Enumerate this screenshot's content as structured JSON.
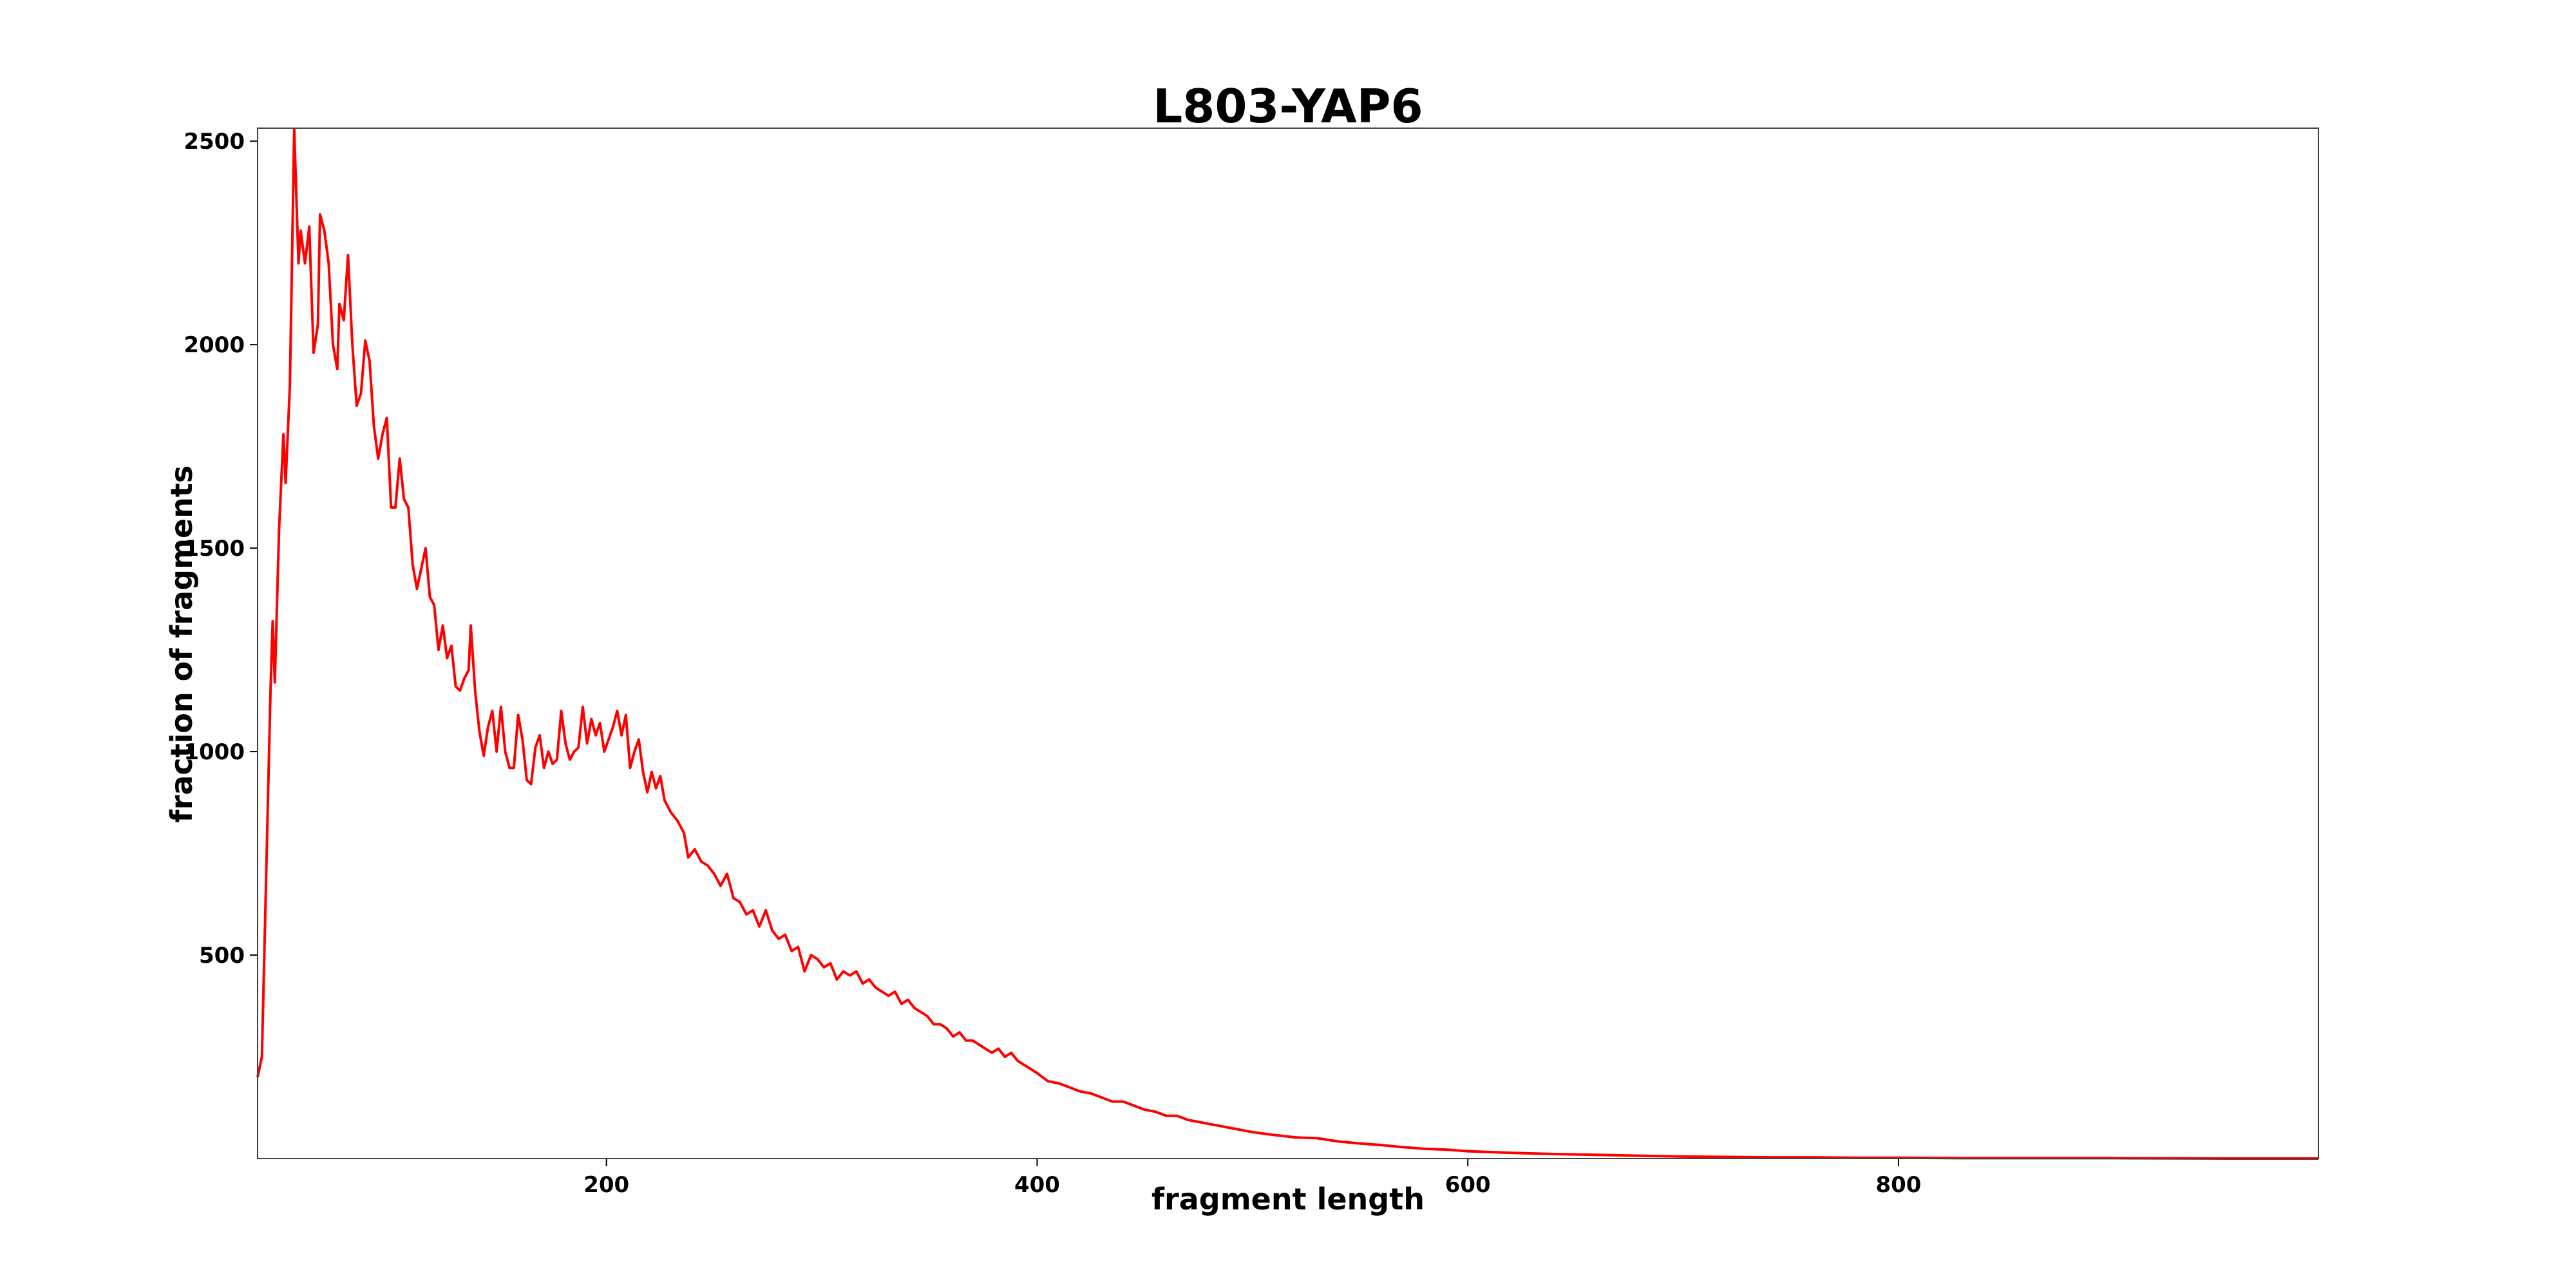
{
  "chart_data": {
    "type": "line",
    "title": "L803-YAP6",
    "xlabel": "fragment length",
    "ylabel": "fraction of fragments",
    "color": "#ff0000",
    "grid": false,
    "xlim": [
      38,
      995
    ],
    "ylim": [
      0,
      2532
    ],
    "xticks": [
      200,
      400,
      600,
      800
    ],
    "yticks": [
      500,
      1000,
      1500,
      2000,
      2500
    ],
    "x": [
      38,
      40,
      42,
      44,
      45,
      46,
      48,
      50,
      51,
      53,
      55,
      57,
      58,
      60,
      62,
      64,
      66,
      67,
      69,
      71,
      73,
      75,
      76,
      78,
      80,
      82,
      84,
      86,
      88,
      90,
      92,
      94,
      96,
      98,
      100,
      102,
      104,
      106,
      108,
      110,
      112,
      114,
      116,
      118,
      120,
      122,
      124,
      126,
      128,
      130,
      132,
      134,
      136,
      137,
      139,
      141,
      143,
      145,
      147,
      149,
      151,
      153,
      155,
      157,
      159,
      161,
      163,
      165,
      167,
      169,
      171,
      173,
      175,
      177,
      179,
      181,
      183,
      185,
      187,
      189,
      191,
      193,
      195,
      197,
      199,
      201,
      203,
      205,
      207,
      209,
      211,
      213,
      215,
      217,
      219,
      221,
      223,
      225,
      227,
      230,
      233,
      236,
      238,
      241,
      244,
      247,
      250,
      253,
      256,
      259,
      262,
      265,
      268,
      271,
      274,
      277,
      280,
      283,
      286,
      289,
      292,
      295,
      298,
      301,
      304,
      307,
      310,
      313,
      316,
      319,
      322,
      325,
      328,
      331,
      334,
      337,
      340,
      343,
      346,
      349,
      352,
      355,
      358,
      361,
      364,
      367,
      370,
      373,
      376,
      379,
      382,
      385,
      388,
      391,
      394,
      397,
      400,
      405,
      410,
      415,
      420,
      425,
      430,
      435,
      440,
      445,
      450,
      455,
      460,
      465,
      470,
      475,
      480,
      485,
      490,
      495,
      500,
      510,
      520,
      530,
      540,
      550,
      560,
      570,
      580,
      590,
      600,
      620,
      640,
      660,
      680,
      700,
      720,
      740,
      760,
      780,
      800,
      830,
      860,
      900,
      950,
      995
    ],
    "values": [
      200,
      250,
      700,
      1150,
      1320,
      1170,
      1550,
      1780,
      1660,
      1900,
      2530,
      2200,
      2280,
      2200,
      2290,
      1980,
      2050,
      2320,
      2280,
      2200,
      2000,
      1940,
      2100,
      2060,
      2220,
      2000,
      1850,
      1880,
      2010,
      1960,
      1800,
      1720,
      1780,
      1820,
      1600,
      1600,
      1720,
      1620,
      1600,
      1460,
      1400,
      1450,
      1500,
      1380,
      1360,
      1250,
      1310,
      1230,
      1260,
      1160,
      1150,
      1180,
      1200,
      1310,
      1150,
      1050,
      990,
      1060,
      1100,
      1000,
      1110,
      1000,
      960,
      960,
      1090,
      1030,
      930,
      920,
      1010,
      1040,
      960,
      1000,
      970,
      980,
      1100,
      1020,
      980,
      1000,
      1010,
      1110,
      1020,
      1080,
      1040,
      1070,
      1000,
      1030,
      1060,
      1100,
      1040,
      1090,
      960,
      1000,
      1030,
      950,
      900,
      950,
      910,
      940,
      880,
      850,
      830,
      800,
      740,
      760,
      730,
      720,
      700,
      670,
      700,
      640,
      630,
      600,
      610,
      570,
      610,
      560,
      540,
      550,
      510,
      520,
      460,
      500,
      490,
      470,
      480,
      440,
      460,
      450,
      460,
      430,
      440,
      420,
      410,
      400,
      410,
      380,
      390,
      370,
      360,
      350,
      330,
      330,
      320,
      300,
      310,
      290,
      290,
      280,
      270,
      260,
      270,
      250,
      260,
      240,
      230,
      220,
      210,
      190,
      185,
      175,
      165,
      160,
      150,
      140,
      140,
      130,
      120,
      115,
      105,
      105,
      95,
      90,
      85,
      80,
      75,
      70,
      65,
      58,
      52,
      50,
      42,
      37,
      33,
      28,
      24,
      22,
      18,
      14,
      11,
      9,
      7,
      5,
      4,
      3,
      3,
      2,
      2,
      1,
      1,
      1,
      0,
      0
    ]
  }
}
